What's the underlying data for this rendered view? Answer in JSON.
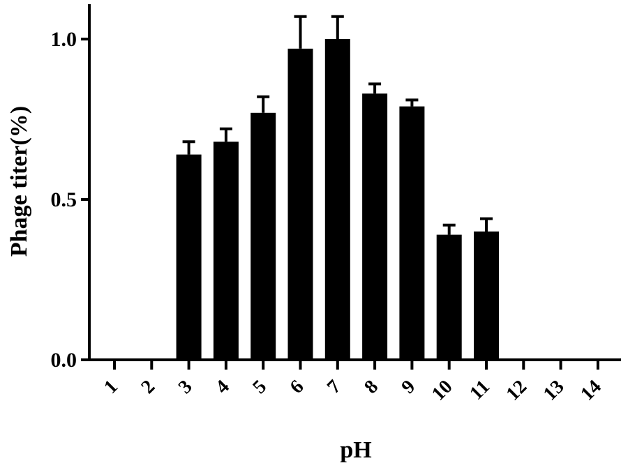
{
  "chart_data": {
    "type": "bar",
    "title": "",
    "xlabel": "pH",
    "ylabel": "Phage titer(%)",
    "categories": [
      "1",
      "2",
      "3",
      "4",
      "5",
      "6",
      "7",
      "8",
      "9",
      "10",
      "11",
      "12",
      "13",
      "14"
    ],
    "values": [
      0,
      0,
      0.64,
      0.68,
      0.77,
      0.97,
      1.0,
      0.83,
      0.79,
      0.39,
      0.4,
      0,
      0,
      0
    ],
    "errors": [
      0,
      0,
      0.04,
      0.04,
      0.05,
      0.1,
      0.07,
      0.03,
      0.02,
      0.03,
      0.04,
      0,
      0,
      0
    ],
    "ylim": [
      0,
      1.1
    ],
    "yticks": [
      0.0,
      0.5,
      1.0
    ],
    "ytick_labels": [
      "0.0",
      "0.5",
      "1.0"
    ],
    "bar_color": "#000000",
    "grid": false,
    "legend": "none"
  }
}
